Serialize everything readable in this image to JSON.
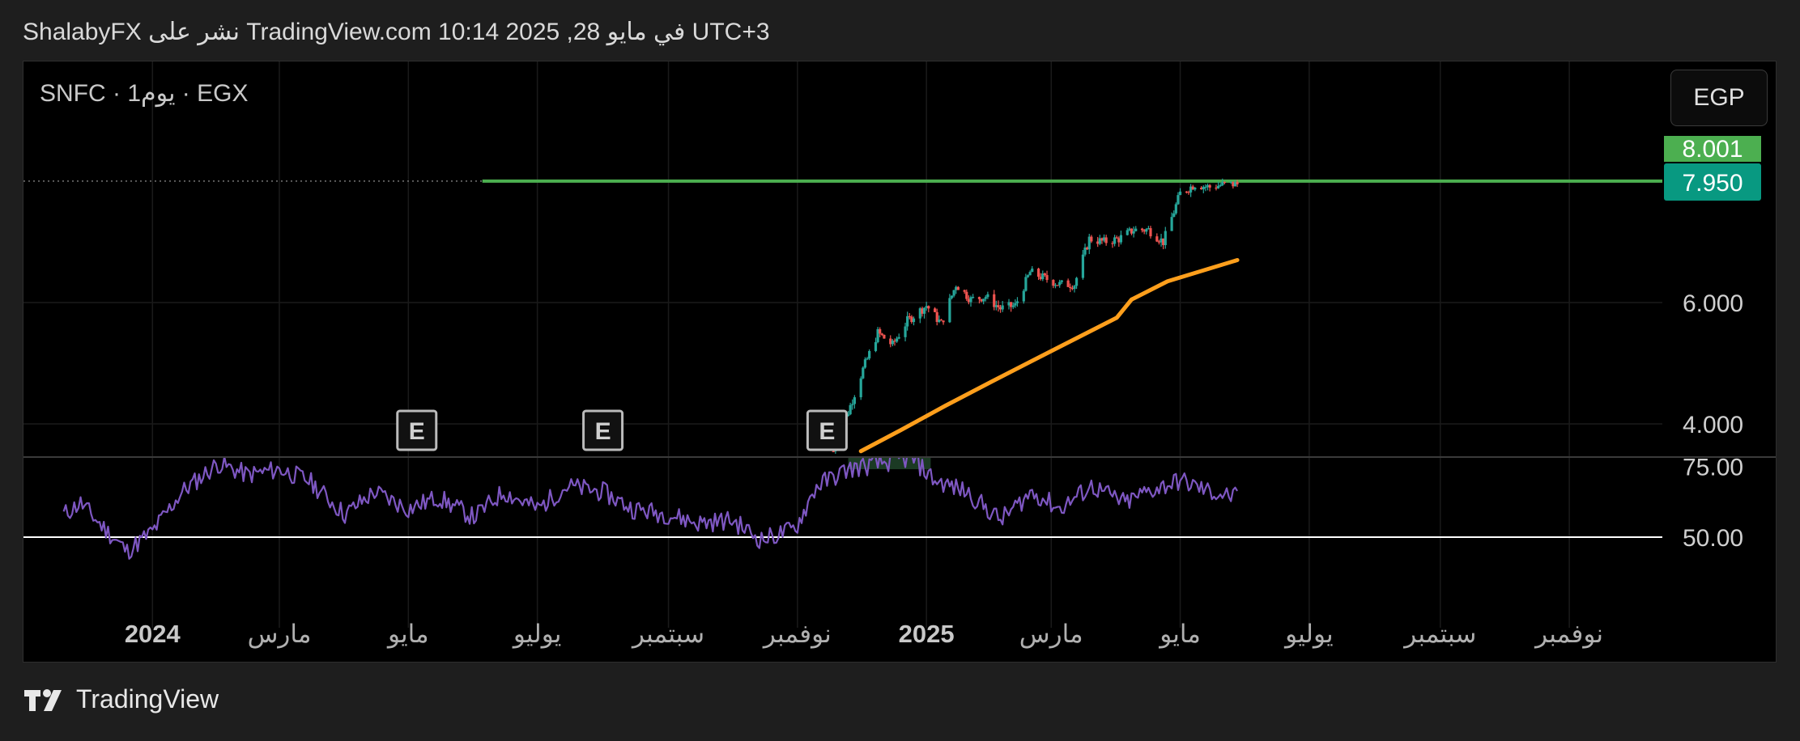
{
  "header": {
    "text": "ShalabyFX نشر على TradingView.com 10:14 2025 ,28 في مايو UTC+3"
  },
  "symbol_line": "SNFC · 1يوم · EGX",
  "currency": "EGP",
  "footer": {
    "brand": "TradingView"
  },
  "colors": {
    "background": "#000000",
    "up": "#26a69a",
    "down": "#ef5350",
    "ma": "#ff9f1c",
    "rsi": "#7e57c2",
    "resistance": "#4caf50",
    "last_price_label": "#089981",
    "high_label": "#4caf50"
  },
  "chart_data": {
    "type": "candlestick",
    "symbol": "SNFC",
    "exchange": "EGX",
    "interval": "1يوم",
    "price_axis": {
      "ticks": [
        4.0,
        6.0
      ],
      "tick_labels": [
        "4.000",
        "6.000"
      ]
    },
    "price_labels": [
      {
        "value": 8.001,
        "text": "8.001",
        "kind": "resistance"
      },
      {
        "value": 7.95,
        "text": "7.950",
        "kind": "last-price"
      }
    ],
    "x_axis": {
      "labels": [
        "2024",
        "مارس",
        "مايو",
        "يوليو",
        "سبتمبر",
        "نوفمبر",
        "2025",
        "مارس",
        "مايو",
        "يوليو",
        "سبتمبر",
        "نوفمبر"
      ],
      "bold": [
        true,
        false,
        false,
        false,
        false,
        false,
        true,
        false,
        false,
        false,
        false,
        false
      ]
    },
    "price_path": [
      [
        "2024-11-18",
        3.55
      ],
      [
        "2024-11-25",
        4.2
      ],
      [
        "2024-12-02",
        4.9
      ],
      [
        "2024-12-09",
        5.5
      ],
      [
        "2024-12-16",
        5.3
      ],
      [
        "2024-12-23",
        5.7
      ],
      [
        "2025-01-01",
        5.95
      ],
      [
        "2025-01-08",
        5.65
      ],
      [
        "2025-01-15",
        6.3
      ],
      [
        "2025-01-22",
        6.05
      ],
      [
        "2025-01-29",
        6.1
      ],
      [
        "2025-02-05",
        5.9
      ],
      [
        "2025-02-12",
        5.95
      ],
      [
        "2025-02-19",
        6.5
      ],
      [
        "2025-02-26",
        6.4
      ],
      [
        "2025-03-05",
        6.3
      ],
      [
        "2025-03-12",
        6.3
      ],
      [
        "2025-03-19",
        7.05
      ],
      [
        "2025-03-26",
        7.0
      ],
      [
        "2025-04-02",
        7.05
      ],
      [
        "2025-04-09",
        7.2
      ],
      [
        "2025-04-16",
        7.2
      ],
      [
        "2025-04-23",
        7.0
      ],
      [
        "2025-05-01",
        7.8
      ],
      [
        "2025-05-08",
        7.95
      ],
      [
        "2025-05-15",
        7.9
      ],
      [
        "2025-05-22",
        7.95
      ],
      [
        "2025-05-28",
        7.95
      ]
    ],
    "moving_average": {
      "points": [
        [
          "2024-12-01",
          3.55
        ],
        [
          "2024-12-20",
          3.9
        ],
        [
          "2025-01-10",
          4.3
        ],
        [
          "2025-02-01",
          4.7
        ],
        [
          "2025-03-01",
          5.2
        ],
        [
          "2025-04-01",
          5.75
        ],
        [
          "2025-04-08",
          6.05
        ],
        [
          "2025-04-25",
          6.35
        ],
        [
          "2025-05-28",
          6.7
        ]
      ]
    },
    "resistance": {
      "value": 8.001,
      "from": "2024-06-05",
      "to": "right-edge"
    },
    "earnings_markers": [
      {
        "date": "2024-05-05",
        "label": "E"
      },
      {
        "date": "2024-08-01",
        "label": "E"
      },
      {
        "date": "2024-11-15",
        "label": "E"
      }
    ],
    "rsi": {
      "levels": [
        {
          "value": 75.0,
          "text": "75.00"
        },
        {
          "value": 50.0,
          "text": "50.00"
        }
      ],
      "reference_line": 50.0,
      "points": [
        [
          "2023-11-20",
          58
        ],
        [
          "2023-11-28",
          62
        ],
        [
          "2023-12-08",
          54
        ],
        [
          "2023-12-20",
          45
        ],
        [
          "2024-01-01",
          52
        ],
        [
          "2024-01-15",
          66
        ],
        [
          "2024-02-01",
          76
        ],
        [
          "2024-02-15",
          72
        ],
        [
          "2024-03-01",
          74
        ],
        [
          "2024-03-15",
          70
        ],
        [
          "2024-04-01",
          58
        ],
        [
          "2024-04-15",
          66
        ],
        [
          "2024-05-01",
          60
        ],
        [
          "2024-05-15",
          64
        ],
        [
          "2024-06-01",
          57
        ],
        [
          "2024-06-15",
          66
        ],
        [
          "2024-07-01",
          60
        ],
        [
          "2024-07-15",
          68
        ],
        [
          "2024-08-01",
          66
        ],
        [
          "2024-08-15",
          60
        ],
        [
          "2024-09-01",
          58
        ],
        [
          "2024-09-15",
          55
        ],
        [
          "2024-10-01",
          56
        ],
        [
          "2024-10-15",
          49
        ],
        [
          "2024-10-31",
          53
        ],
        [
          "2024-11-10",
          68
        ],
        [
          "2024-11-25",
          74
        ],
        [
          "2024-12-10",
          76
        ],
        [
          "2024-12-25",
          78
        ],
        [
          "2025-01-05",
          70
        ],
        [
          "2025-01-20",
          66
        ],
        [
          "2025-02-05",
          56
        ],
        [
          "2025-02-20",
          66
        ],
        [
          "2025-03-05",
          60
        ],
        [
          "2025-03-20",
          68
        ],
        [
          "2025-04-05",
          62
        ],
        [
          "2025-04-15",
          66
        ],
        [
          "2025-05-01",
          70
        ],
        [
          "2025-05-15",
          66
        ],
        [
          "2025-05-28",
          64
        ]
      ]
    }
  }
}
